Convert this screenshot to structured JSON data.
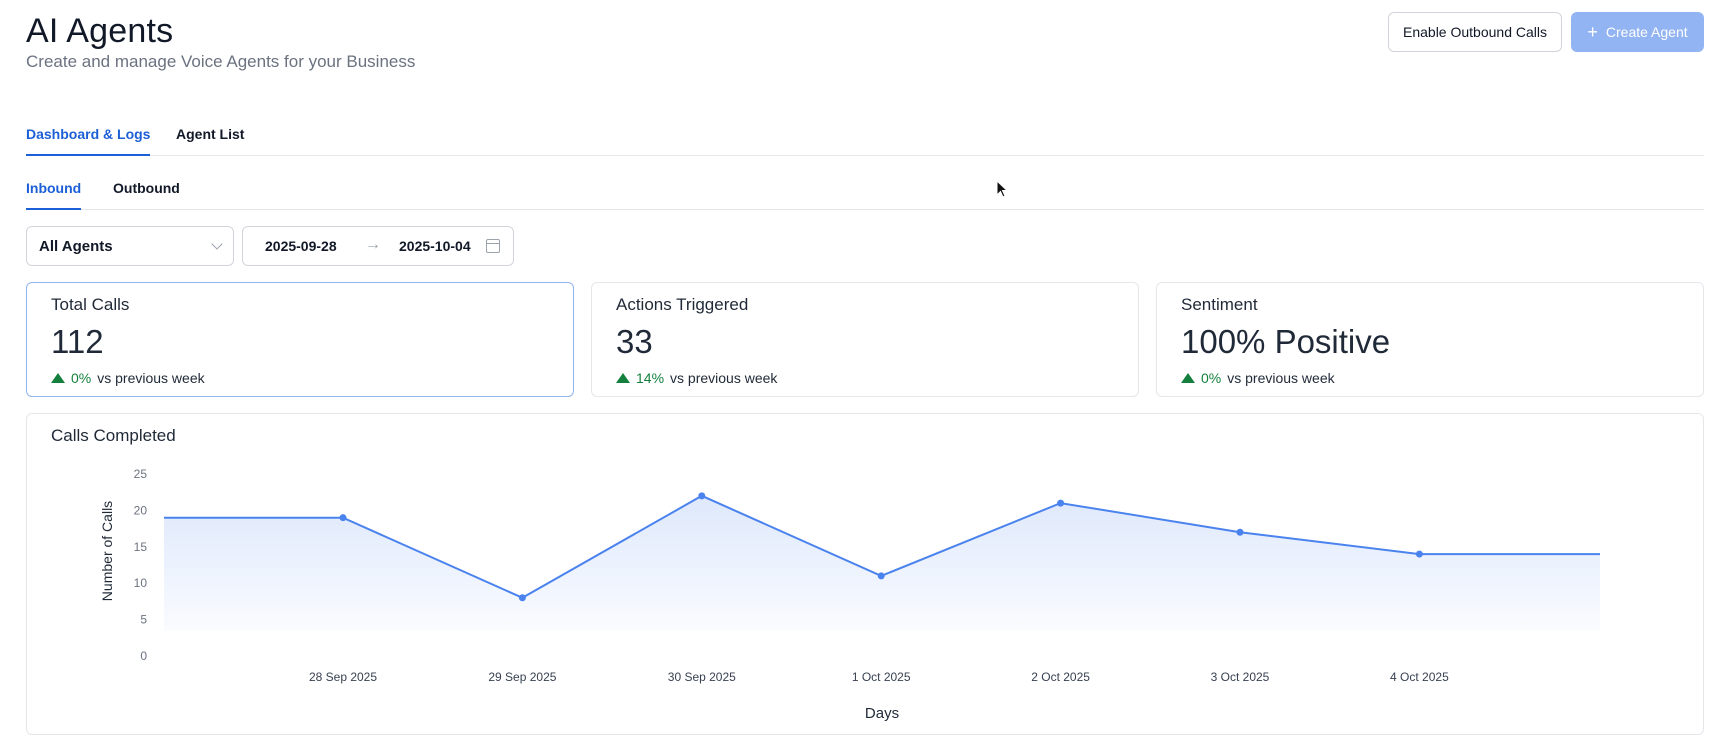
{
  "header": {
    "title": "AI Agents",
    "subtitle": "Create and manage Voice Agents for your Business",
    "enable_outbound_label": "Enable Outbound Calls",
    "create_agent_label": "Create Agent"
  },
  "tabs": {
    "main": [
      {
        "label": "Dashboard & Logs",
        "active": true
      },
      {
        "label": "Agent List",
        "active": false
      }
    ],
    "sub": [
      {
        "label": "Inbound",
        "active": true
      },
      {
        "label": "Outbound",
        "active": false
      }
    ]
  },
  "filters": {
    "agent_select": "All Agents",
    "date_start": "2025-09-28",
    "date_end": "2025-10-04"
  },
  "cards": [
    {
      "label": "Total Calls",
      "value": "112",
      "change": "0%",
      "suffix": "vs previous week"
    },
    {
      "label": "Actions Triggered",
      "value": "33",
      "change": "14%",
      "suffix": "vs previous week"
    },
    {
      "label": "Sentiment",
      "value": "100% Positive",
      "change": "0%",
      "suffix": "vs previous week"
    }
  ],
  "colors": {
    "accent": "#1d5fd6",
    "line": "#4a82ee",
    "positive": "#15803d"
  },
  "chart_data": {
    "type": "area",
    "title": "Calls Completed",
    "xlabel": "Days",
    "ylabel": "Number of Calls",
    "categories": [
      "28 Sep 2025",
      "29 Sep 2025",
      "30 Sep 2025",
      "1 Oct 2025",
      "2 Oct 2025",
      "3 Oct 2025",
      "4 Oct 2025"
    ],
    "values": [
      19,
      8,
      22,
      11,
      21,
      17,
      14
    ],
    "yticks": [
      0,
      5,
      10,
      15,
      20,
      25
    ],
    "ylim": [
      0,
      25
    ],
    "grid": false
  }
}
